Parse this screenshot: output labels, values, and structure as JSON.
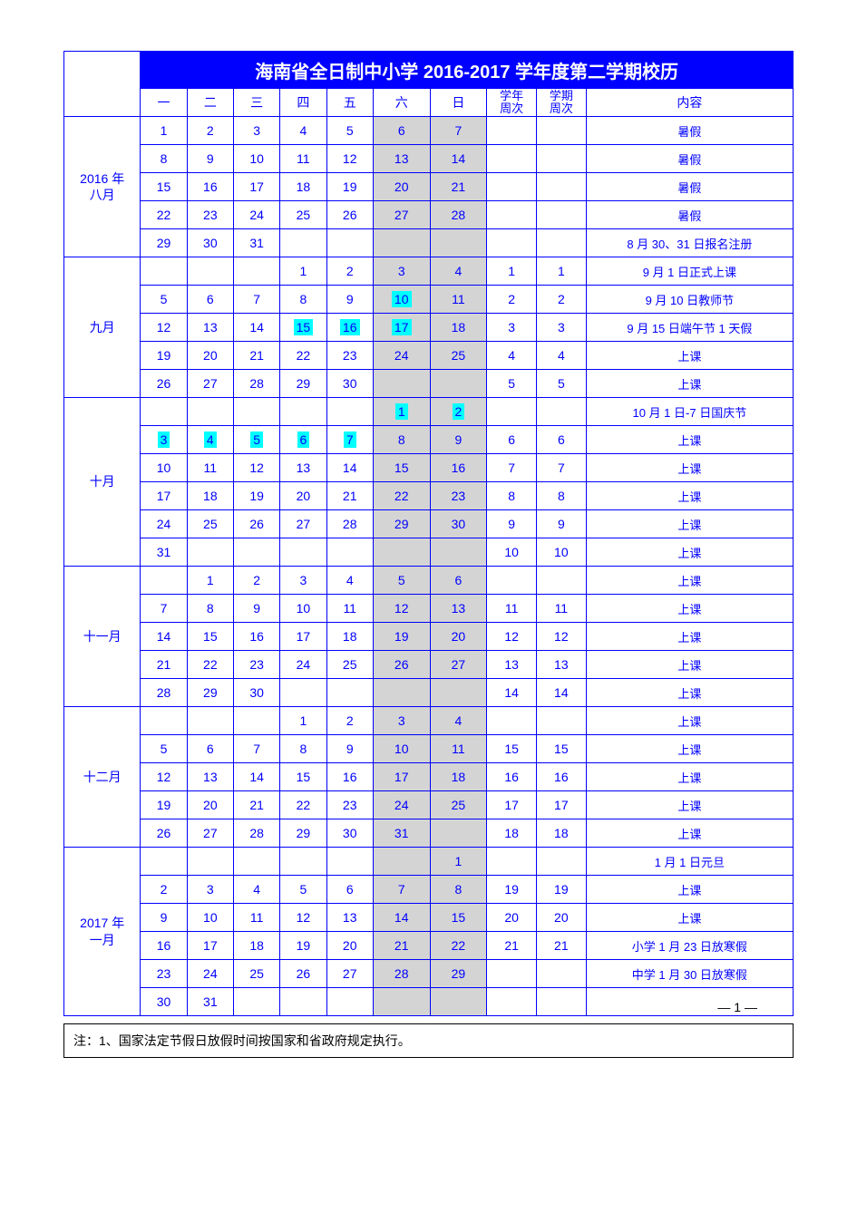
{
  "title": "海南省全日制中小学 2016-2017 学年度第二学期校历",
  "colWidths": [
    "74",
    "45",
    "45",
    "45",
    "45",
    "45",
    "55",
    "55",
    "48",
    "48",
    "200"
  ],
  "headers": [
    "",
    "一",
    "二",
    "三",
    "四",
    "五",
    "六",
    "日",
    "学年周次",
    "学期周次",
    "内容"
  ],
  "weekendCols": [
    6,
    7
  ],
  "highlightColor": "#00ffff",
  "weekendBg": "#d4d4d4",
  "borderColor": "#0000ff",
  "textColor": "#0000ff",
  "titleBg": "#0000ff",
  "titleColor": "#ffffff",
  "months": [
    {
      "label": "2016 年\n八月",
      "rows": [
        {
          "d": [
            "1",
            "2",
            "3",
            "4",
            "5",
            "6",
            "7"
          ],
          "yw": "",
          "sw": "",
          "c": "暑假"
        },
        {
          "d": [
            "8",
            "9",
            "10",
            "11",
            "12",
            "13",
            "14"
          ],
          "yw": "",
          "sw": "",
          "c": "暑假"
        },
        {
          "d": [
            "15",
            "16",
            "17",
            "18",
            "19",
            "20",
            "21"
          ],
          "yw": "",
          "sw": "",
          "c": "暑假"
        },
        {
          "d": [
            "22",
            "23",
            "24",
            "25",
            "26",
            "27",
            "28"
          ],
          "yw": "",
          "sw": "",
          "c": "暑假"
        },
        {
          "d": [
            "29",
            "30",
            "31",
            "",
            "",
            "",
            ""
          ],
          "yw": "",
          "sw": "",
          "c": "8 月 30、31 日报名注册"
        }
      ]
    },
    {
      "label": "九月",
      "rows": [
        {
          "d": [
            "",
            "",
            "",
            "1",
            "2",
            "3",
            "4"
          ],
          "yw": "1",
          "sw": "1",
          "c": "9 月 1 日正式上课"
        },
        {
          "d": [
            "5",
            "6",
            "7",
            "8",
            "9",
            "10",
            "11"
          ],
          "yw": "2",
          "sw": "2",
          "c": "9 月 10 日教师节",
          "hl": [
            5
          ]
        },
        {
          "d": [
            "12",
            "13",
            "14",
            "15",
            "16",
            "17",
            "18"
          ],
          "yw": "3",
          "sw": "3",
          "c": "9 月 15 日端午节 1 天假",
          "hl": [
            3,
            4,
            5
          ]
        },
        {
          "d": [
            "19",
            "20",
            "21",
            "22",
            "23",
            "24",
            "25"
          ],
          "yw": "4",
          "sw": "4",
          "c": "上课"
        },
        {
          "d": [
            "26",
            "27",
            "28",
            "29",
            "30",
            "",
            ""
          ],
          "yw": "5",
          "sw": "5",
          "c": "上课"
        }
      ]
    },
    {
      "label": "十月",
      "rows": [
        {
          "d": [
            "",
            "",
            "",
            "",
            "",
            "1",
            "2"
          ],
          "yw": "",
          "sw": "",
          "c": "10 月 1 日-7 日国庆节",
          "hl": [
            5,
            6
          ]
        },
        {
          "d": [
            "3",
            "4",
            "5",
            "6",
            "7",
            "8",
            "9"
          ],
          "yw": "6",
          "sw": "6",
          "c": "上课",
          "hl": [
            0,
            1,
            2,
            3,
            4
          ]
        },
        {
          "d": [
            "10",
            "11",
            "12",
            "13",
            "14",
            "15",
            "16"
          ],
          "yw": "7",
          "sw": "7",
          "c": "上课"
        },
        {
          "d": [
            "17",
            "18",
            "19",
            "20",
            "21",
            "22",
            "23"
          ],
          "yw": "8",
          "sw": "8",
          "c": "上课"
        },
        {
          "d": [
            "24",
            "25",
            "26",
            "27",
            "28",
            "29",
            "30"
          ],
          "yw": "9",
          "sw": "9",
          "c": "上课"
        },
        {
          "d": [
            "31",
            "",
            "",
            "",
            "",
            "",
            ""
          ],
          "yw": "10",
          "sw": "10",
          "c": "上课"
        }
      ]
    },
    {
      "label": "十一月",
      "rows": [
        {
          "d": [
            "",
            "1",
            "2",
            "3",
            "4",
            "5",
            "6"
          ],
          "yw": "",
          "sw": "",
          "c": "上课"
        },
        {
          "d": [
            "7",
            "8",
            "9",
            "10",
            "11",
            "12",
            "13"
          ],
          "yw": "11",
          "sw": "11",
          "c": "上课"
        },
        {
          "d": [
            "14",
            "15",
            "16",
            "17",
            "18",
            "19",
            "20"
          ],
          "yw": "12",
          "sw": "12",
          "c": "上课"
        },
        {
          "d": [
            "21",
            "22",
            "23",
            "24",
            "25",
            "26",
            "27"
          ],
          "yw": "13",
          "sw": "13",
          "c": "上课"
        },
        {
          "d": [
            "28",
            "29",
            "30",
            "",
            "",
            "",
            ""
          ],
          "yw": "14",
          "sw": "14",
          "c": "上课"
        }
      ]
    },
    {
      "label": "十二月",
      "rows": [
        {
          "d": [
            "",
            "",
            "",
            "1",
            "2",
            "3",
            "4"
          ],
          "yw": "",
          "sw": "",
          "c": "上课"
        },
        {
          "d": [
            "5",
            "6",
            "7",
            "8",
            "9",
            "10",
            "11"
          ],
          "yw": "15",
          "sw": "15",
          "c": "上课"
        },
        {
          "d": [
            "12",
            "13",
            "14",
            "15",
            "16",
            "17",
            "18"
          ],
          "yw": "16",
          "sw": "16",
          "c": "上课"
        },
        {
          "d": [
            "19",
            "20",
            "21",
            "22",
            "23",
            "24",
            "25"
          ],
          "yw": "17",
          "sw": "17",
          "c": "上课"
        },
        {
          "d": [
            "26",
            "27",
            "28",
            "29",
            "30",
            "31",
            ""
          ],
          "yw": "18",
          "sw": "18",
          "c": "上课"
        }
      ]
    },
    {
      "label": "2017 年\n一月",
      "rows": [
        {
          "d": [
            "",
            "",
            "",
            "",
            "",
            "",
            "1"
          ],
          "yw": "",
          "sw": "",
          "c": "1 月 1 日元旦"
        },
        {
          "d": [
            "2",
            "3",
            "4",
            "5",
            "6",
            "7",
            "8"
          ],
          "yw": "19",
          "sw": "19",
          "c": "上课"
        },
        {
          "d": [
            "9",
            "10",
            "11",
            "12",
            "13",
            "14",
            "15"
          ],
          "yw": "20",
          "sw": "20",
          "c": "上课"
        },
        {
          "d": [
            "16",
            "17",
            "18",
            "19",
            "20",
            "21",
            "22"
          ],
          "yw": "21",
          "sw": "21",
          "c": "小学 1 月 23 日放寒假"
        },
        {
          "d": [
            "23",
            "24",
            "25",
            "26",
            "27",
            "28",
            "29"
          ],
          "yw": "",
          "sw": "",
          "c": "中学 1 月 30 日放寒假"
        },
        {
          "d": [
            "30",
            "31",
            "",
            "",
            "",
            "",
            ""
          ],
          "yw": "",
          "sw": "",
          "c": ""
        }
      ]
    }
  ],
  "footnote": "注：1、国家法定节假日放假时间按国家和省政府规定执行。",
  "pageNumber": "— 1 —"
}
